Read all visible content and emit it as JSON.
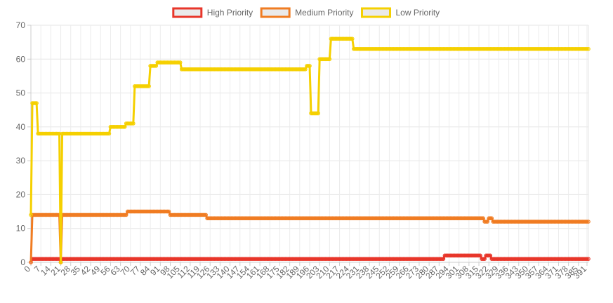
{
  "chart_data": {
    "type": "line",
    "title": "",
    "xlabel": "",
    "ylabel": "",
    "xlim": [
      0,
      392
    ],
    "ylim": [
      0,
      70
    ],
    "y_ticks": [
      0,
      10,
      20,
      30,
      40,
      50,
      60,
      70
    ],
    "x_tick_step": 7,
    "last_x_tick": 391,
    "grid": true,
    "legend_position": "top",
    "series": [
      {
        "name": "High Priority",
        "color": "#e8362a",
        "segments": [
          [
            0,
            0
          ],
          [
            1,
            1
          ],
          [
            20,
            1
          ],
          [
            21,
            0
          ],
          [
            22,
            1
          ],
          [
            290,
            1
          ],
          [
            291,
            2
          ],
          [
            316,
            2
          ],
          [
            317,
            1
          ],
          [
            319,
            1
          ],
          [
            320,
            2
          ],
          [
            323,
            2
          ],
          [
            324,
            1
          ],
          [
            392,
            1
          ]
        ]
      },
      {
        "name": "Medium Priority",
        "color": "#f07c22",
        "segments": [
          [
            0,
            0
          ],
          [
            1,
            14
          ],
          [
            20,
            14
          ],
          [
            21,
            0
          ],
          [
            22,
            14
          ],
          [
            67,
            14
          ],
          [
            68,
            15
          ],
          [
            97,
            15
          ],
          [
            98,
            14
          ],
          [
            123,
            14
          ],
          [
            124,
            13
          ],
          [
            318,
            13
          ],
          [
            319,
            12
          ],
          [
            321,
            12
          ],
          [
            322,
            13
          ],
          [
            324,
            13
          ],
          [
            325,
            12
          ],
          [
            392,
            12
          ]
        ]
      },
      {
        "name": "Low Priority",
        "color": "#f5d000",
        "segments": [
          [
            0,
            14
          ],
          [
            1,
            47
          ],
          [
            4,
            47
          ],
          [
            5,
            38
          ],
          [
            20,
            38
          ],
          [
            21,
            0
          ],
          [
            22,
            38
          ],
          [
            55,
            38
          ],
          [
            56,
            40
          ],
          [
            66,
            40
          ],
          [
            67,
            41
          ],
          [
            72,
            41
          ],
          [
            73,
            52
          ],
          [
            83,
            52
          ],
          [
            84,
            58
          ],
          [
            88,
            58
          ],
          [
            89,
            59
          ],
          [
            105,
            59
          ],
          [
            106,
            57
          ],
          [
            193,
            57
          ],
          [
            194,
            58
          ],
          [
            196,
            58
          ],
          [
            197,
            44
          ],
          [
            202,
            44
          ],
          [
            203,
            60
          ],
          [
            210,
            60
          ],
          [
            211,
            66
          ],
          [
            226,
            66
          ],
          [
            227,
            63
          ],
          [
            392,
            63
          ]
        ]
      }
    ]
  }
}
